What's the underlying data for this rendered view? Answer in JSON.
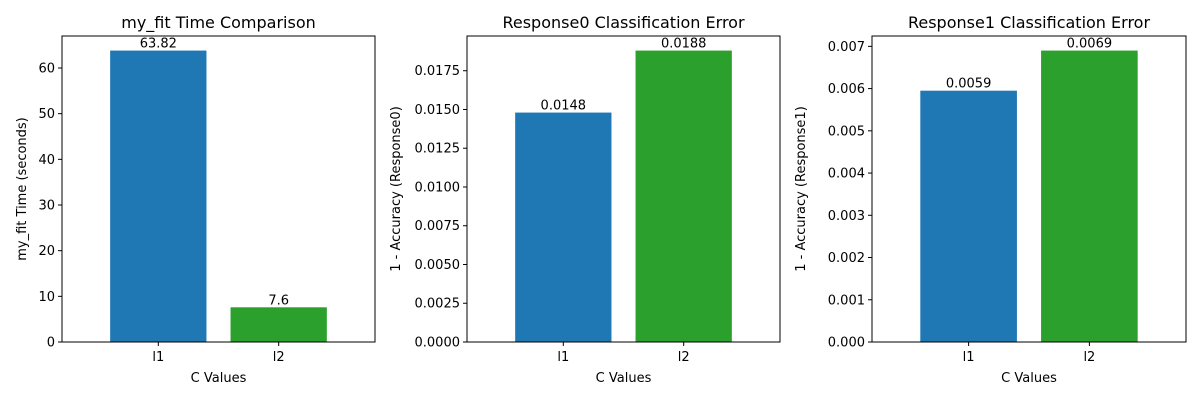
{
  "colors": {
    "l1": "#1f77b4",
    "l2": "#2ca02c"
  },
  "chart_data": [
    {
      "type": "bar",
      "title": "my_fit Time Comparison",
      "xlabel": "C Values",
      "ylabel": "my_fit Time (seconds)",
      "categories": [
        "l1",
        "l2"
      ],
      "values": [
        63.82,
        7.6
      ],
      "value_labels": [
        "63.82",
        "7.6"
      ],
      "ylim": [
        0,
        67.01
      ],
      "yticks": [
        0,
        10,
        20,
        30,
        40,
        50,
        60
      ],
      "ytick_labels": [
        "0",
        "10",
        "20",
        "30",
        "40",
        "50",
        "60"
      ],
      "grid": false,
      "legend": "none"
    },
    {
      "type": "bar",
      "title": "Response0 Classification Error",
      "xlabel": "C Values",
      "ylabel": "1 - Accuracy (Response0)",
      "categories": [
        "l1",
        "l2"
      ],
      "values": [
        0.0148,
        0.0188
      ],
      "value_labels": [
        "0.0148",
        "0.0188"
      ],
      "ylim": [
        0,
        0.01974
      ],
      "yticks": [
        0,
        0.0025,
        0.005,
        0.0075,
        0.01,
        0.0125,
        0.015,
        0.0175
      ],
      "ytick_labels": [
        "0.0000",
        "0.0025",
        "0.0050",
        "0.0075",
        "0.0100",
        "0.0125",
        "0.0150",
        "0.0175"
      ],
      "grid": false,
      "legend": "none"
    },
    {
      "type": "bar",
      "title": "Response1 Classification Error",
      "xlabel": "C Values",
      "ylabel": "1 - Accuracy (Response1)",
      "categories": [
        "l1",
        "l2"
      ],
      "values": [
        0.00595,
        0.0069
      ],
      "value_labels": [
        "0.0059",
        "0.0069"
      ],
      "ylim": [
        0,
        0.007245
      ],
      "yticks": [
        0,
        0.001,
        0.002,
        0.003,
        0.004,
        0.005,
        0.006,
        0.007
      ],
      "ytick_labels": [
        "0.000",
        "0.001",
        "0.002",
        "0.003",
        "0.004",
        "0.005",
        "0.006",
        "0.007"
      ],
      "grid": false,
      "legend": "none"
    }
  ]
}
